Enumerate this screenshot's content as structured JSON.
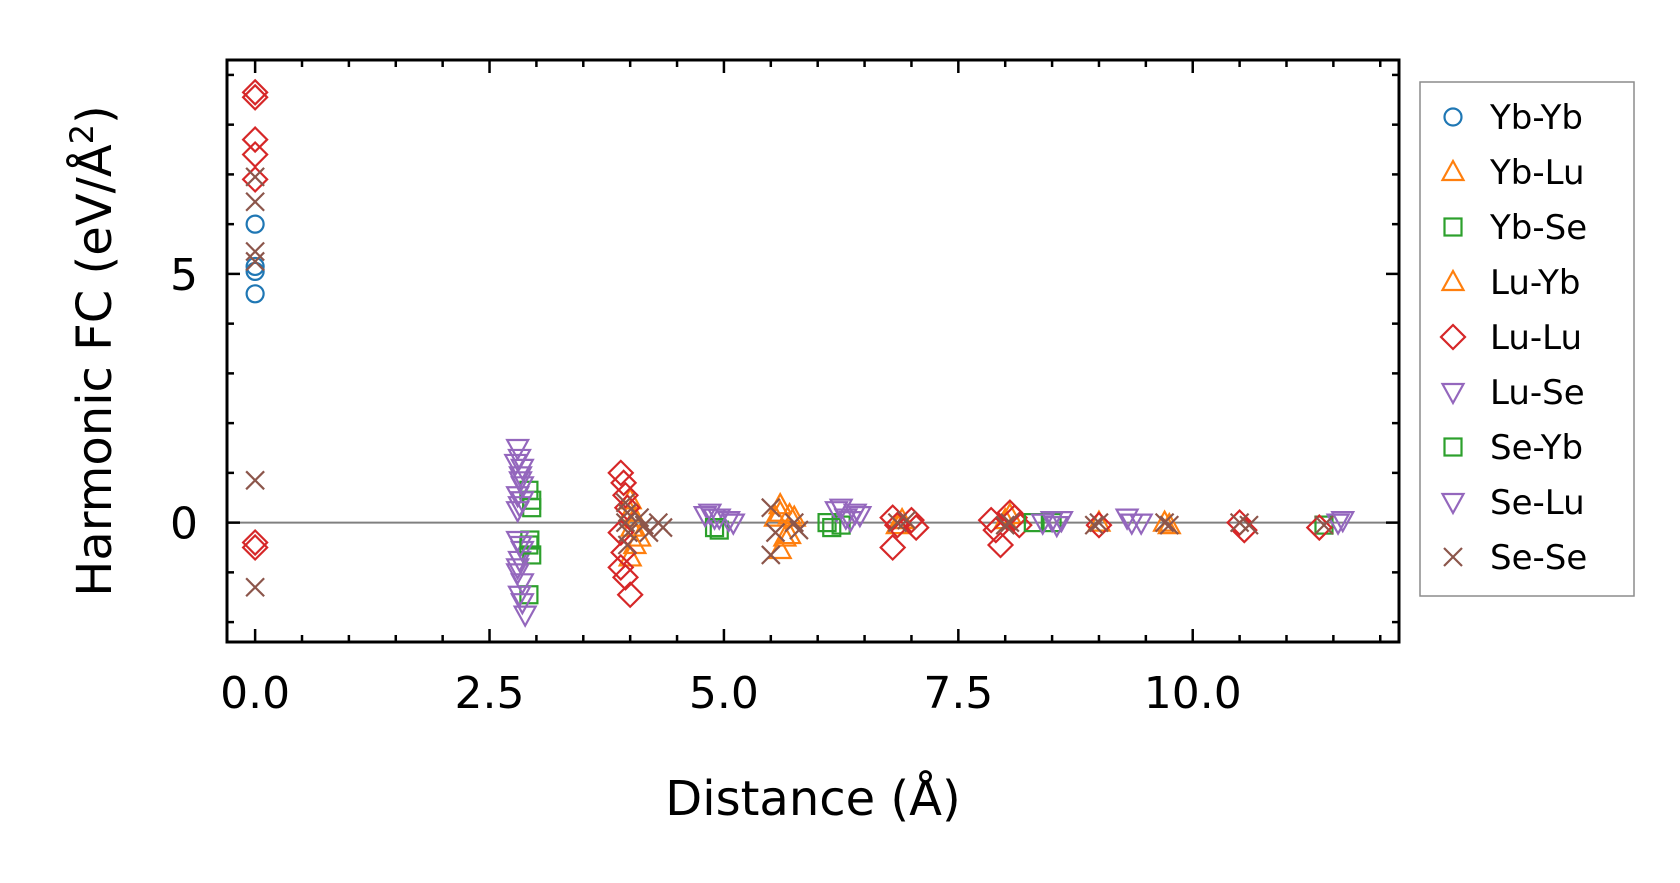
{
  "chart_data": {
    "type": "scatter",
    "title": "",
    "xlabel": "Distance (Å)",
    "ylabel_main": "Harmonic FC (eV/Å",
    "ylabel_sup": "2",
    "ylabel_close": ")",
    "xlim": [
      -0.3,
      12.2
    ],
    "ylim": [
      -2.4,
      9.3
    ],
    "xticks": [
      0,
      2.5,
      5,
      7.5,
      10
    ],
    "xtick_labels": [
      "0.0",
      "2.5",
      "5.0",
      "7.5",
      "10.0"
    ],
    "xminor_step": 0.5,
    "yticks": [
      0,
      5
    ],
    "ytick_labels": [
      "0",
      "5"
    ],
    "yminor_step": 1,
    "zero_line": 0,
    "legend_position": "outside-right",
    "series": [
      {
        "name": "Yb-Yb",
        "marker": "circle",
        "color": "#1f77b4",
        "points": [
          [
            0,
            6.0
          ],
          [
            0,
            5.15
          ],
          [
            0,
            5.05
          ],
          [
            0,
            4.6
          ]
        ]
      },
      {
        "name": "Yb-Lu",
        "marker": "triangle-up",
        "color": "#ff7f0e",
        "points": [
          [
            4.0,
            0.2
          ],
          [
            4.02,
            -0.1
          ],
          [
            4.05,
            -0.45
          ],
          [
            4.0,
            -0.7
          ],
          [
            5.55,
            0.1
          ],
          [
            5.6,
            0.35
          ],
          [
            5.65,
            -0.3
          ],
          [
            5.6,
            -0.55
          ],
          [
            5.7,
            0.15
          ],
          [
            6.9,
            0.05
          ],
          [
            8.0,
            0.05
          ],
          [
            9.0,
            0.0
          ],
          [
            9.75,
            -0.05
          ]
        ]
      },
      {
        "name": "Yb-Se",
        "marker": "square",
        "color": "#2ca02c",
        "points": [
          [
            2.92,
            0.65
          ],
          [
            2.95,
            0.45
          ],
          [
            2.93,
            -0.35
          ],
          [
            2.95,
            -0.65
          ],
          [
            2.92,
            -1.45
          ],
          [
            4.95,
            -0.15
          ],
          [
            6.1,
            0.0
          ],
          [
            6.25,
            -0.05
          ],
          [
            8.5,
            0.0
          ],
          [
            11.4,
            -0.05
          ]
        ]
      },
      {
        "name": "Lu-Yb",
        "marker": "triangle-up",
        "color": "#ff7f0e",
        "points": [
          [
            4.0,
            0.45
          ],
          [
            4.05,
            0.1
          ],
          [
            4.1,
            -0.3
          ],
          [
            5.6,
            0.2
          ],
          [
            5.7,
            -0.25
          ],
          [
            5.75,
            0.1
          ],
          [
            6.85,
            -0.05
          ],
          [
            8.05,
            0.15
          ],
          [
            9.7,
            0.0
          ]
        ]
      },
      {
        "name": "Lu-Lu",
        "marker": "diamond",
        "color": "#d62728",
        "points": [
          [
            0,
            8.65
          ],
          [
            0,
            8.55
          ],
          [
            0,
            7.7
          ],
          [
            0,
            7.4
          ],
          [
            0,
            6.9
          ],
          [
            0,
            -0.4
          ],
          [
            0,
            -0.5
          ],
          [
            3.9,
            1.0
          ],
          [
            3.93,
            0.8
          ],
          [
            3.95,
            0.55
          ],
          [
            3.97,
            0.3
          ],
          [
            3.9,
            -0.2
          ],
          [
            3.93,
            -0.6
          ],
          [
            3.9,
            -0.9
          ],
          [
            3.95,
            -1.1
          ],
          [
            4.0,
            -1.45
          ],
          [
            6.8,
            0.1
          ],
          [
            6.85,
            -0.05
          ],
          [
            6.8,
            -0.5
          ],
          [
            7.0,
            0.05
          ],
          [
            7.05,
            -0.1
          ],
          [
            7.85,
            0.05
          ],
          [
            7.9,
            -0.15
          ],
          [
            7.95,
            -0.45
          ],
          [
            8.05,
            0.2
          ],
          [
            8.1,
            0.1
          ],
          [
            8.15,
            -0.05
          ],
          [
            9.0,
            -0.05
          ],
          [
            10.5,
            0.0
          ],
          [
            10.55,
            -0.15
          ],
          [
            11.35,
            -0.1
          ]
        ]
      },
      {
        "name": "Lu-Se",
        "marker": "triangle-down",
        "color": "#9467bd",
        "points": [
          [
            2.8,
            1.5
          ],
          [
            2.82,
            1.3
          ],
          [
            2.85,
            1.1
          ],
          [
            2.83,
            0.95
          ],
          [
            2.85,
            0.75
          ],
          [
            2.8,
            0.55
          ],
          [
            2.82,
            0.35
          ],
          [
            2.8,
            -0.35
          ],
          [
            2.85,
            -0.55
          ],
          [
            2.82,
            -0.75
          ],
          [
            2.8,
            -1.0
          ],
          [
            2.85,
            -1.2
          ],
          [
            2.82,
            -1.45
          ],
          [
            4.85,
            0.2
          ],
          [
            4.9,
            0.1
          ],
          [
            5.05,
            0.05
          ],
          [
            6.2,
            0.25
          ],
          [
            6.3,
            0.1
          ],
          [
            6.4,
            0.2
          ],
          [
            8.5,
            0.05
          ],
          [
            8.55,
            -0.05
          ],
          [
            9.3,
            0.1
          ],
          [
            9.45,
            0.0
          ],
          [
            11.55,
            0.0
          ]
        ]
      },
      {
        "name": "Se-Yb",
        "marker": "square",
        "color": "#2ca02c",
        "points": [
          [
            2.95,
            0.3
          ],
          [
            2.92,
            -0.45
          ],
          [
            4.9,
            -0.1
          ],
          [
            6.15,
            -0.1
          ],
          [
            8.3,
            0.0
          ]
        ]
      },
      {
        "name": "Se-Lu",
        "marker": "triangle-down",
        "color": "#9467bd",
        "points": [
          [
            2.78,
            1.2
          ],
          [
            2.83,
            0.85
          ],
          [
            2.85,
            0.45
          ],
          [
            2.8,
            0.25
          ],
          [
            2.83,
            -0.45
          ],
          [
            2.8,
            -0.9
          ],
          [
            2.85,
            -1.6
          ],
          [
            2.88,
            -1.85
          ],
          [
            4.8,
            0.15
          ],
          [
            4.95,
            0.1
          ],
          [
            5.1,
            0.0
          ],
          [
            6.25,
            0.3
          ],
          [
            6.35,
            0.05
          ],
          [
            6.45,
            0.15
          ],
          [
            8.4,
            0.0
          ],
          [
            8.6,
            0.05
          ],
          [
            9.35,
            0.0
          ],
          [
            11.6,
            0.05
          ]
        ]
      },
      {
        "name": "Se-Se",
        "marker": "x",
        "color": "#8c564b",
        "points": [
          [
            0,
            6.95
          ],
          [
            0,
            6.45
          ],
          [
            0,
            5.45
          ],
          [
            0,
            5.25
          ],
          [
            0,
            0.85
          ],
          [
            0,
            -1.3
          ],
          [
            3.95,
            0.4
          ],
          [
            3.97,
            0.2
          ],
          [
            3.95,
            0.0
          ],
          [
            3.98,
            -0.2
          ],
          [
            3.97,
            -0.45
          ],
          [
            4.1,
            0.1
          ],
          [
            4.15,
            -0.05
          ],
          [
            4.2,
            -0.2
          ],
          [
            4.3,
            0.0
          ],
          [
            4.35,
            -0.1
          ],
          [
            5.5,
            0.3
          ],
          [
            5.55,
            -0.2
          ],
          [
            5.5,
            -0.65
          ],
          [
            5.75,
            0.0
          ],
          [
            5.8,
            -0.15
          ],
          [
            6.85,
            0.0
          ],
          [
            6.95,
            0.05
          ],
          [
            8.0,
            -0.05
          ],
          [
            8.05,
            0.0
          ],
          [
            8.95,
            -0.05
          ],
          [
            9.0,
            0.0
          ],
          [
            9.7,
            0.0
          ],
          [
            9.75,
            -0.05
          ],
          [
            10.5,
            0.0
          ],
          [
            10.6,
            -0.05
          ],
          [
            11.4,
            -0.05
          ]
        ]
      }
    ]
  }
}
